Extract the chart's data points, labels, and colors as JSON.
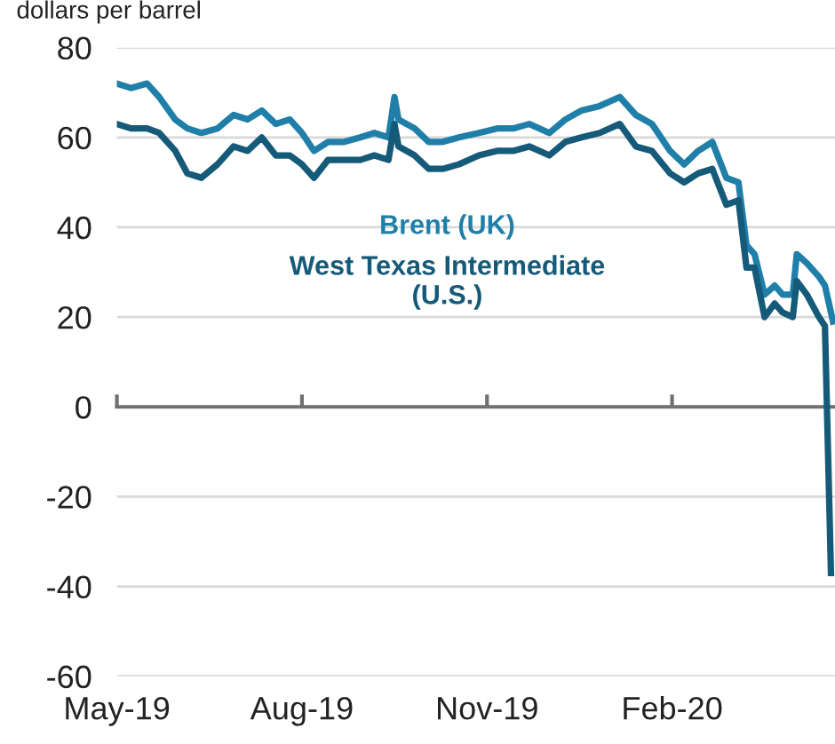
{
  "chart_data": {
    "type": "line",
    "ylabel": "dollars per barrel",
    "xlim": [
      "2019-05-01",
      "2020-04-22"
    ],
    "xticks": [
      {
        "value": "2019-05-01",
        "label": "May-19"
      },
      {
        "value": "2019-08-01",
        "label": "Aug-19"
      },
      {
        "value": "2019-11-01",
        "label": "Nov-19"
      },
      {
        "value": "2020-02-01",
        "label": "Feb-20"
      }
    ],
    "ylim": [
      -60,
      80
    ],
    "yticks": [
      -60,
      -40,
      -20,
      0,
      20,
      40,
      60,
      80
    ],
    "grid": "y",
    "legend": false,
    "marker": "none",
    "line_style": "solid",
    "series": [
      {
        "name": "Brent (UK)",
        "color": "#1f7fa8",
        "x": [
          "2019-05-01",
          "2019-05-08",
          "2019-05-16",
          "2019-05-22",
          "2019-05-30",
          "2019-06-05",
          "2019-06-12",
          "2019-06-20",
          "2019-06-28",
          "2019-07-05",
          "2019-07-12",
          "2019-07-19",
          "2019-07-26",
          "2019-08-01",
          "2019-08-07",
          "2019-08-14",
          "2019-08-22",
          "2019-08-30",
          "2019-09-06",
          "2019-09-13",
          "2019-09-16",
          "2019-09-18",
          "2019-09-26",
          "2019-10-03",
          "2019-10-10",
          "2019-10-18",
          "2019-10-28",
          "2019-11-06",
          "2019-11-14",
          "2019-11-22",
          "2019-12-02",
          "2019-12-10",
          "2019-12-18",
          "2019-12-27",
          "2020-01-06",
          "2020-01-14",
          "2020-01-22",
          "2020-01-31",
          "2020-02-07",
          "2020-02-14",
          "2020-02-21",
          "2020-02-28",
          "2020-03-05",
          "2020-03-09",
          "2020-03-13",
          "2020-03-18",
          "2020-03-23",
          "2020-03-27",
          "2020-04-01",
          "2020-04-03",
          "2020-04-08",
          "2020-04-14",
          "2020-04-17",
          "2020-04-21"
        ],
        "values": [
          72,
          71,
          72,
          69,
          64,
          62,
          61,
          62,
          65,
          64,
          66,
          63,
          64,
          61,
          57,
          59,
          59,
          60,
          61,
          60,
          69,
          64,
          62,
          59,
          59,
          60,
          61,
          62,
          62,
          63,
          61,
          64,
          66,
          67,
          69,
          65,
          63,
          57,
          54,
          57,
          59,
          51,
          50,
          36,
          34,
          25,
          27,
          25,
          25,
          34,
          32,
          29,
          27,
          19
        ]
      },
      {
        "name": "West Texas Intermediate (U.S.)",
        "color": "#155a78",
        "x": [
          "2019-05-01",
          "2019-05-08",
          "2019-05-16",
          "2019-05-22",
          "2019-05-30",
          "2019-06-05",
          "2019-06-12",
          "2019-06-20",
          "2019-06-28",
          "2019-07-05",
          "2019-07-12",
          "2019-07-19",
          "2019-07-26",
          "2019-08-01",
          "2019-08-07",
          "2019-08-14",
          "2019-08-22",
          "2019-08-30",
          "2019-09-06",
          "2019-09-13",
          "2019-09-16",
          "2019-09-18",
          "2019-09-26",
          "2019-10-03",
          "2019-10-10",
          "2019-10-18",
          "2019-10-28",
          "2019-11-06",
          "2019-11-14",
          "2019-11-22",
          "2019-12-02",
          "2019-12-10",
          "2019-12-18",
          "2019-12-27",
          "2020-01-06",
          "2020-01-14",
          "2020-01-22",
          "2020-01-31",
          "2020-02-07",
          "2020-02-14",
          "2020-02-21",
          "2020-02-28",
          "2020-03-05",
          "2020-03-09",
          "2020-03-13",
          "2020-03-18",
          "2020-03-23",
          "2020-03-27",
          "2020-04-01",
          "2020-04-03",
          "2020-04-08",
          "2020-04-14",
          "2020-04-17",
          "2020-04-20"
        ],
        "values": [
          63,
          62,
          62,
          61,
          57,
          52,
          51,
          54,
          58,
          57,
          60,
          56,
          56,
          54,
          51,
          55,
          55,
          55,
          56,
          55,
          63,
          58,
          56,
          53,
          53,
          54,
          56,
          57,
          57,
          58,
          56,
          59,
          60,
          61,
          63,
          58,
          57,
          52,
          50,
          52,
          53,
          45,
          46,
          31,
          31,
          20,
          23,
          21,
          20,
          28,
          25,
          20,
          18,
          -37
        ]
      }
    ]
  }
}
